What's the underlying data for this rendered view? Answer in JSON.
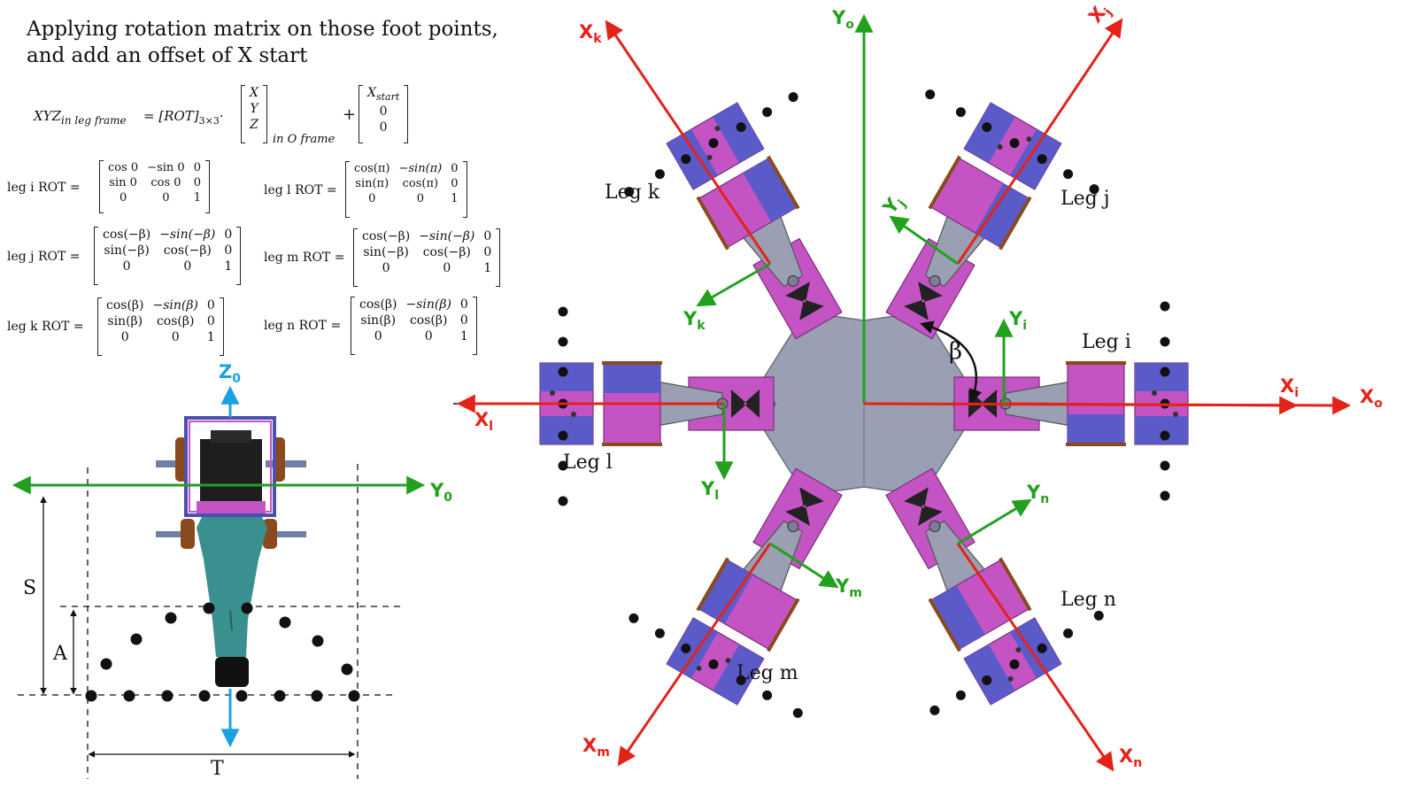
{
  "title": {
    "line1": "Applying rotation matrix on those foot points,",
    "line2": "and add an offset of X start"
  },
  "equation": {
    "lhs": "XYZ",
    "lhs_sub": "in leg frame",
    "eq": "= [ROT]",
    "rot_sub": "3×3",
    "dot": "·",
    "vec": [
      "X",
      "Y",
      "Z"
    ],
    "vec_sub": "in O frame",
    "plus": "+",
    "offset": [
      "X",
      "0",
      "0"
    ],
    "offset_sub": "start"
  },
  "rot_matrices": [
    {
      "label": "leg i  ROT  =",
      "rows": [
        [
          "cos 0",
          "−sin 0",
          "0"
        ],
        [
          "sin 0",
          "cos 0",
          "0"
        ],
        [
          "0",
          "0",
          "1"
        ]
      ]
    },
    {
      "label": "leg l ROT  =",
      "rows": [
        [
          "cos(π)",
          "−sin(π)",
          "0"
        ],
        [
          "sin(π)",
          "cos(π)",
          "0"
        ],
        [
          "0",
          "0",
          "1"
        ]
      ]
    },
    {
      "label": "leg j ROT  =",
      "rows": [
        [
          "cos(−β)",
          "−sin(−β)",
          "0"
        ],
        [
          "sin(−β)",
          "cos(−β)",
          "0"
        ],
        [
          "0",
          "0",
          "1"
        ]
      ]
    },
    {
      "label": "leg m ROT  =",
      "rows": [
        [
          "cos(−β)",
          "−sin(−β)",
          "0"
        ],
        [
          "sin(−β)",
          "cos(−β)",
          "0"
        ],
        [
          "0",
          "0",
          "1"
        ]
      ]
    },
    {
      "label": "leg k ROT  =",
      "rows": [
        [
          "cos(β)",
          "−sin(β)",
          "0"
        ],
        [
          "sin(β)",
          "cos(β)",
          "0"
        ],
        [
          "0",
          "0",
          "1"
        ]
      ]
    },
    {
      "label": "leg n ROT  =",
      "rows": [
        [
          "cos(β)",
          "−sin(β)",
          "0"
        ],
        [
          "sin(β)",
          "cos(β)",
          "0"
        ],
        [
          "0",
          "0",
          "1"
        ]
      ]
    }
  ],
  "side_view": {
    "z_axis": "Z",
    "z_sub": "0",
    "y_axis": "Y",
    "y_sub": "0",
    "dim_s": "S",
    "dim_a": "A",
    "dim_t": "T"
  },
  "top_view": {
    "y_o": "Y",
    "y_o_sub": "o",
    "x_o": "X",
    "x_o_sub": "o",
    "beta": "β",
    "legs": {
      "i": {
        "name": "Leg i",
        "x": "X",
        "x_sub": "i",
        "y": "Y",
        "y_sub": "i"
      },
      "j": {
        "name": "Leg j",
        "x": "X",
        "x_sub": "j",
        "y": "Y",
        "y_sub": "j"
      },
      "k": {
        "name": "Leg k",
        "x": "X",
        "x_sub": "k",
        "y": "Y",
        "y_sub": "k"
      },
      "l": {
        "name": "Leg l",
        "x": "X",
        "x_sub": "l",
        "y": "Y",
        "y_sub": "l"
      },
      "m": {
        "name": "Leg m",
        "x": "X",
        "x_sub": "m",
        "y": "Y",
        "y_sub": "m"
      },
      "n": {
        "name": "Leg n",
        "x": "X",
        "x_sub": "n",
        "y": "Y",
        "y_sub": "n"
      }
    }
  },
  "colors": {
    "axis_red": "#e3231a",
    "axis_green": "#22a01e",
    "axis_blue": "#1ba1e2",
    "body_gray": "#9a9fb3",
    "bracket_pink": "#c454c4",
    "servo_blue": "#5a5ac8",
    "wood": "#8b4a1e",
    "nozzle_teal": "#3a8f8f"
  }
}
